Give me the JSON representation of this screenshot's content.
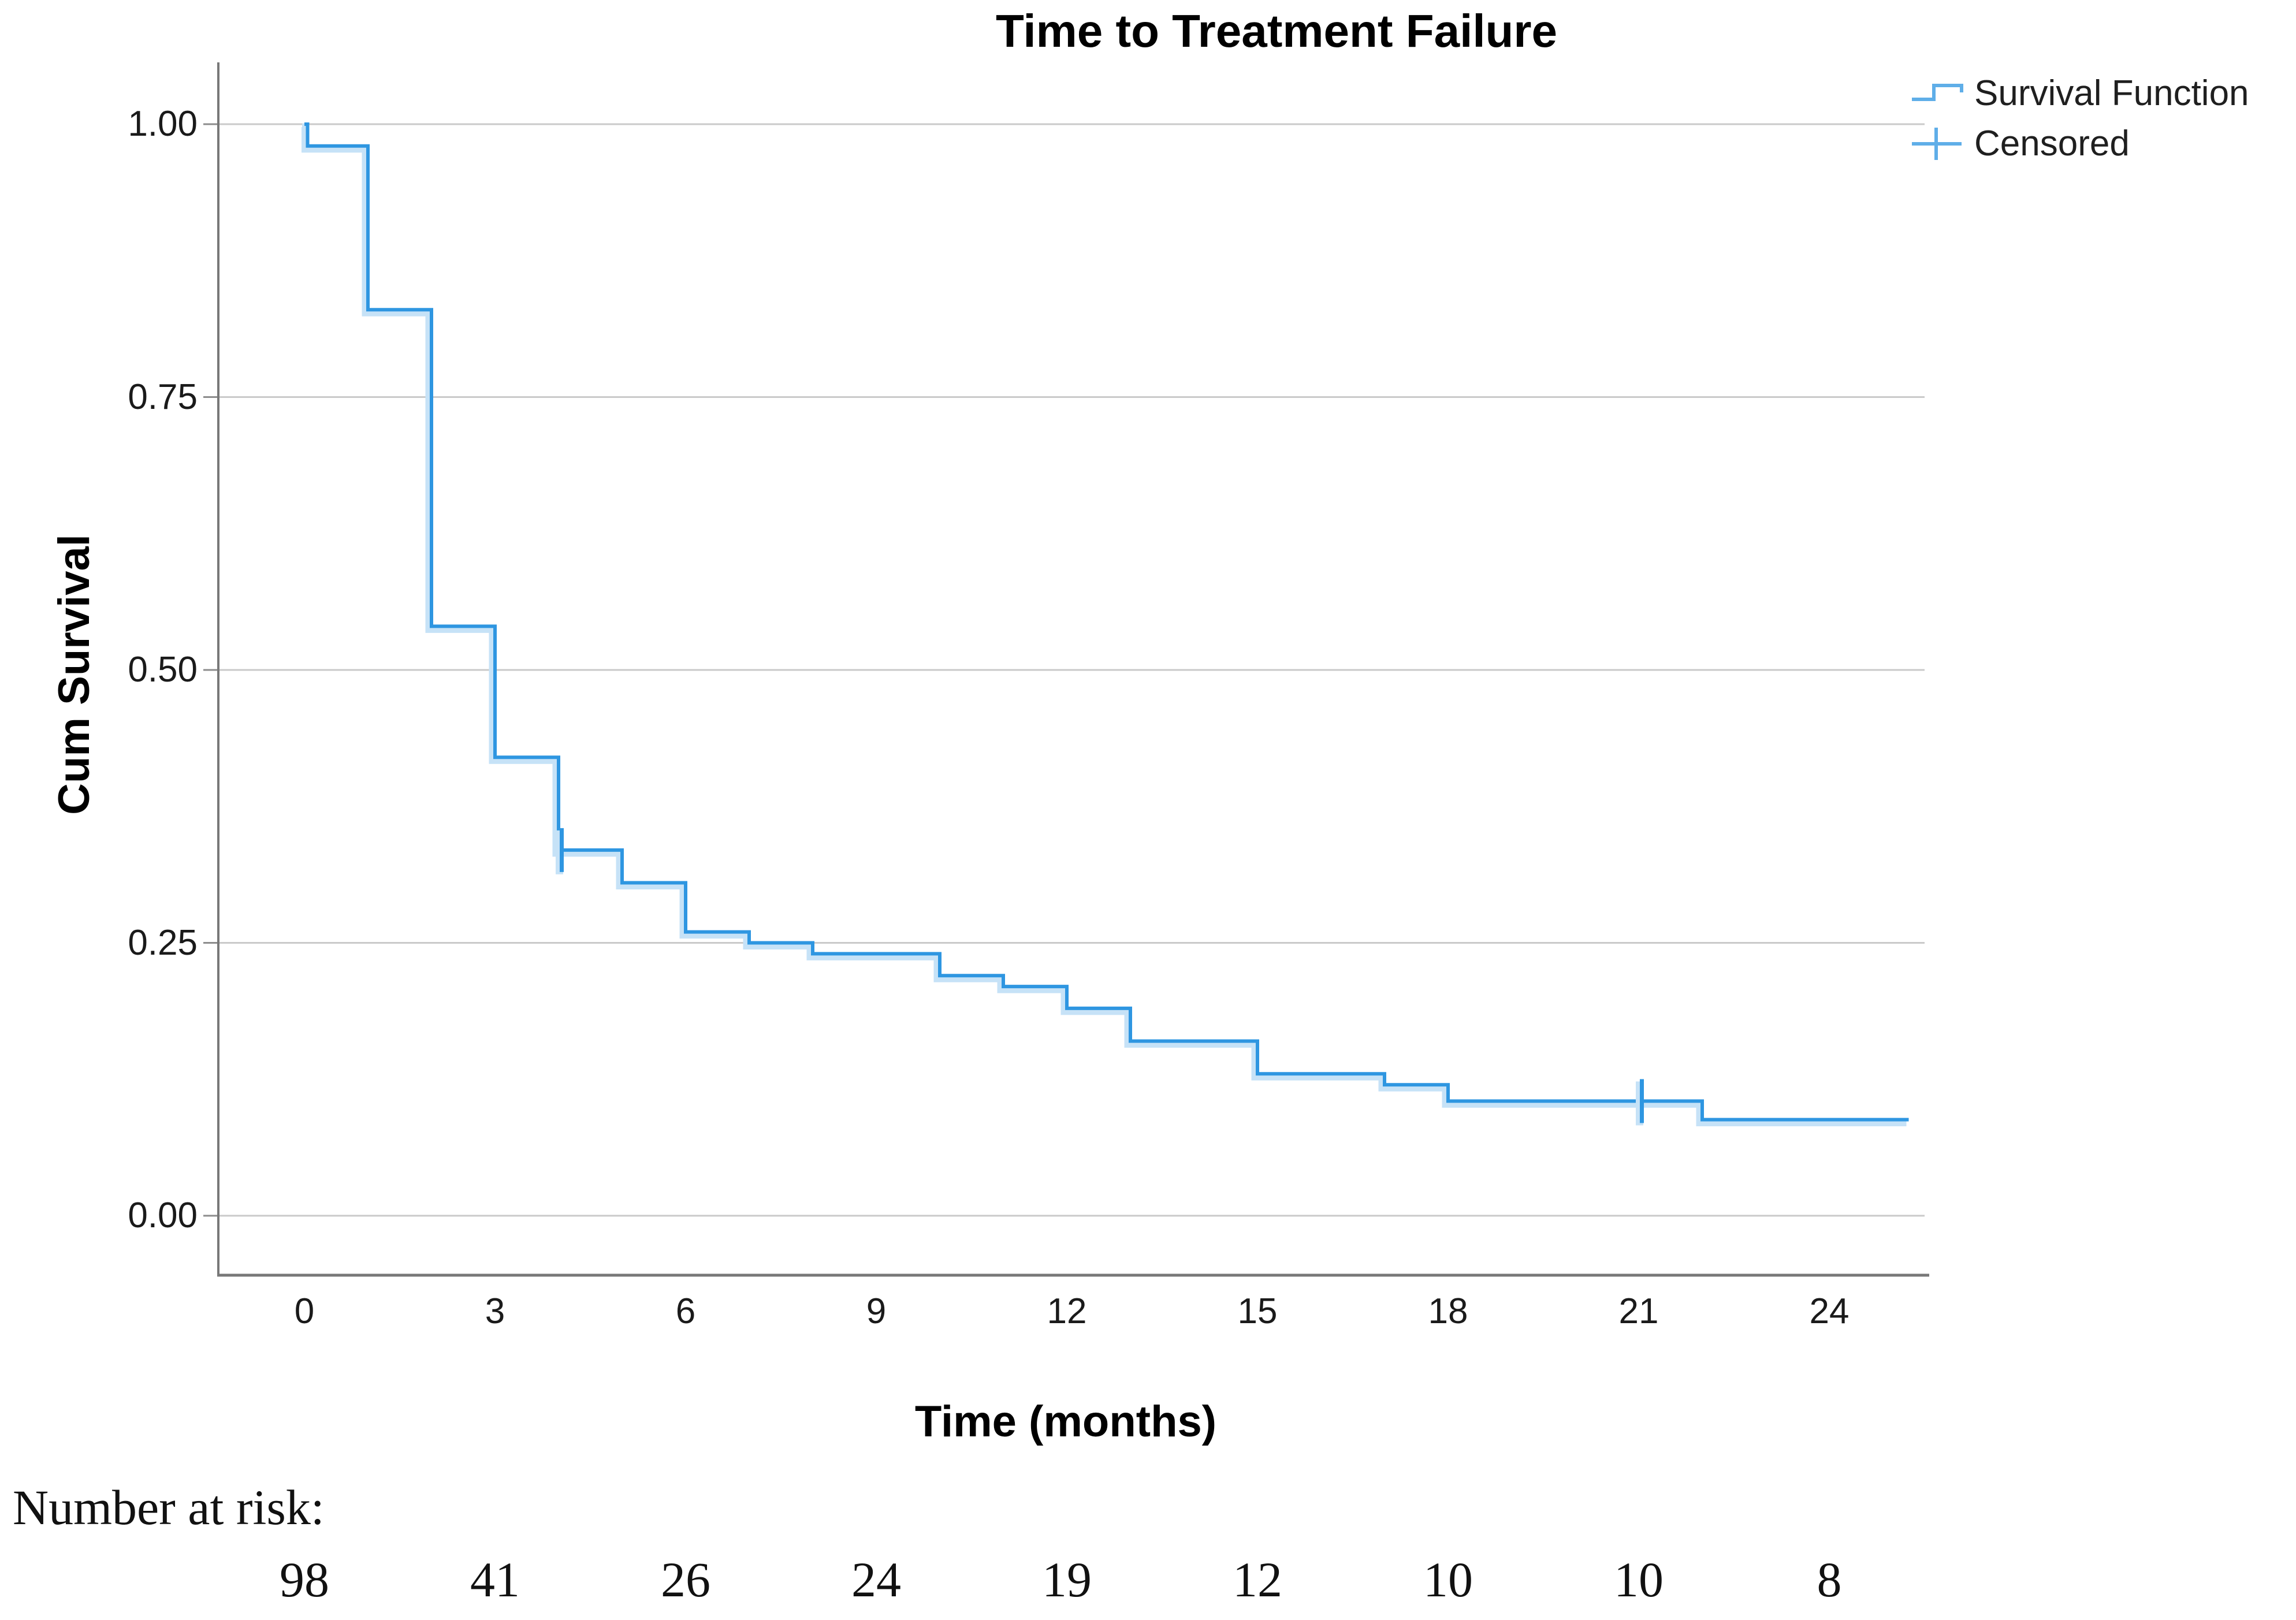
{
  "title": "Time to Treatment Failure",
  "legend": {
    "items": [
      {
        "label": "Survival Function",
        "icon": "step-line-icon"
      },
      {
        "label": "Censored",
        "icon": "plus-tick-icon"
      }
    ]
  },
  "colors": {
    "curve_line": "#2E96E1",
    "curve_halo": "#C6E2F7",
    "legend_line": "#5FAEE8",
    "gridline": "#CACACA",
    "axis_frame": "#787878",
    "tick_mark": "#8C8C8C",
    "text": "#1a1a1a"
  },
  "chart_data": {
    "type": "line",
    "subtype": "kaplan-meier-step",
    "title": "Time to Treatment Failure",
    "xlabel": "Time (months)",
    "ylabel": "Cum Survival",
    "xlim": [
      -1.35,
      25.5
    ],
    "ylim": [
      -0.055,
      1.0
    ],
    "grid": "horizontal",
    "legend_position": "top-right",
    "x_ticks": [
      {
        "value": 0,
        "label": "0"
      },
      {
        "value": 3,
        "label": "3"
      },
      {
        "value": 6,
        "label": "6"
      },
      {
        "value": 9,
        "label": "9"
      },
      {
        "value": 12,
        "label": "12"
      },
      {
        "value": 15,
        "label": "15"
      },
      {
        "value": 18,
        "label": "18"
      },
      {
        "value": 21,
        "label": "21"
      },
      {
        "value": 24,
        "label": "24"
      }
    ],
    "y_ticks": [
      {
        "value": 1.0,
        "label": "1.00"
      },
      {
        "value": 0.75,
        "label": "0.75"
      },
      {
        "value": 0.5,
        "label": "0.50"
      },
      {
        "value": 0.25,
        "label": "0.25"
      },
      {
        "value": 0.0,
        "label": "0.00"
      }
    ],
    "series": [
      {
        "name": "Survival Function",
        "steps": [
          [
            0,
            1.0
          ],
          [
            0.05,
            0.98
          ],
          [
            1,
            0.83
          ],
          [
            2,
            0.54
          ],
          [
            3,
            0.42
          ],
          [
            4,
            0.335
          ],
          [
            5,
            0.305
          ],
          [
            6,
            0.26
          ],
          [
            7,
            0.25
          ],
          [
            8,
            0.24
          ],
          [
            10,
            0.22
          ],
          [
            11,
            0.21
          ],
          [
            12,
            0.19
          ],
          [
            13,
            0.16
          ],
          [
            15,
            0.13
          ],
          [
            17,
            0.12
          ],
          [
            18,
            0.105
          ],
          [
            22,
            0.088
          ]
        ],
        "end_time": 25.25
      }
    ],
    "censored": [
      [
        4.05,
        0.335
      ],
      [
        21.05,
        0.105
      ]
    ]
  },
  "number_at_risk": {
    "label": "Number at risk:",
    "times": [
      0,
      3,
      6,
      9,
      12,
      15,
      18,
      21,
      24
    ],
    "counts": [
      98,
      41,
      26,
      24,
      19,
      12,
      10,
      10,
      8
    ]
  }
}
